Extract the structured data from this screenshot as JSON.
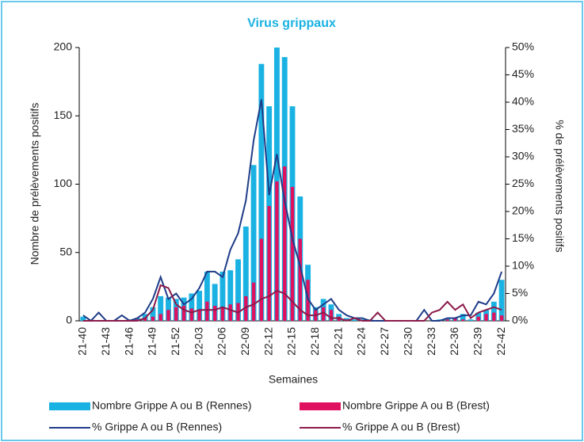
{
  "chart_data": {
    "type": "bar-line",
    "title": "Virus grippaux",
    "x_label": "Semaines",
    "y_label": "Nombre de prélèvements positifs",
    "y2_label": "% de prélèvements positifs",
    "categories": [
      "21-40",
      null,
      null,
      "21-43",
      null,
      null,
      "21-46",
      null,
      null,
      "21-49",
      null,
      null,
      "21-52",
      null,
      null,
      "22-03",
      null,
      null,
      "22-06",
      null,
      null,
      "22-09",
      null,
      null,
      "22-12",
      null,
      null,
      "22-15",
      null,
      null,
      "22-18",
      null,
      null,
      "22-21",
      null,
      null,
      "22-24",
      null,
      null,
      "22-27",
      null,
      null,
      "22-30",
      null,
      null,
      "22-33",
      null,
      null,
      "22-36",
      null,
      null,
      "22-39",
      null,
      null,
      "22-42"
    ],
    "ylim": [
      0,
      200
    ],
    "yticks": [
      0,
      50,
      100,
      150,
      200
    ],
    "y2lim": [
      0,
      50
    ],
    "y2ticks": [
      {
        "value": 0,
        "label": "0%"
      },
      {
        "value": 5,
        "label": "5%"
      },
      {
        "value": 10,
        "label": "10%"
      },
      {
        "value": 15,
        "label": "15%"
      },
      {
        "value": 20,
        "label": "20%"
      },
      {
        "value": 25,
        "label": "25%"
      },
      {
        "value": 30,
        "label": "30%"
      },
      {
        "value": 35,
        "label": "35%"
      },
      {
        "value": 40,
        "label": "40%"
      },
      {
        "value": 45,
        "label": "45%"
      },
      {
        "value": 50,
        "label": "50%"
      }
    ],
    "series": [
      {
        "name": "Nombre Grippe A ou B (Rennes)",
        "kind": "bar",
        "color": "#1ab2e3",
        "values": [
          3,
          0,
          0,
          0,
          0,
          0,
          1,
          2,
          5,
          10,
          18,
          17,
          16,
          17,
          20,
          22,
          36,
          27,
          36,
          37,
          45,
          69,
          114,
          188,
          157,
          200,
          193,
          157,
          91,
          41,
          10,
          16,
          12,
          5,
          2,
          1,
          1,
          1,
          0,
          0,
          0,
          0,
          0,
          0,
          0,
          0,
          1,
          2,
          2,
          5,
          1,
          6,
          8,
          14,
          30
        ]
      },
      {
        "name": "Nombre Grippe A ou B (Brest)",
        "kind": "bar",
        "color": "#e0125f",
        "values": [
          0,
          0,
          0,
          0,
          0,
          0,
          0,
          1,
          2,
          3,
          5,
          8,
          10,
          11,
          9,
          8,
          14,
          11,
          10,
          12,
          13,
          18,
          28,
          60,
          84,
          102,
          113,
          98,
          60,
          30,
          8,
          10,
          8,
          3,
          1,
          0,
          0,
          0,
          0,
          0,
          0,
          0,
          0,
          0,
          0,
          0,
          0,
          1,
          2,
          1,
          0,
          3,
          5,
          6,
          4
        ]
      },
      {
        "name": "% Grippe A ou B (Rennes)",
        "kind": "line",
        "axis": "y2",
        "color": "#1f3c88",
        "values": [
          1,
          0,
          1.5,
          0,
          0,
          1,
          0,
          0.5,
          1.5,
          4,
          8,
          4,
          5,
          3,
          4,
          6,
          9,
          9,
          8,
          13,
          16,
          22,
          33,
          40.5,
          23,
          30.5,
          22,
          15,
          10,
          4,
          2,
          3,
          4,
          2,
          1,
          0.5,
          0.5,
          0,
          0,
          0,
          0,
          0,
          0,
          0,
          2,
          0,
          0,
          0.5,
          0.5,
          1,
          1,
          3.5,
          3,
          5,
          9
        ]
      },
      {
        "name": "% Grippe A ou B (Brest)",
        "kind": "line",
        "axis": "y2",
        "color": "#8b1a4a",
        "values": [
          0,
          0,
          0,
          0,
          0,
          0,
          0,
          0,
          0.5,
          2,
          6.5,
          6,
          3,
          2,
          1.5,
          2,
          2,
          2,
          2.5,
          2,
          1.5,
          2.5,
          3,
          4,
          4.5,
          5.5,
          5,
          3.5,
          2,
          1,
          1,
          1.5,
          0.5,
          0.5,
          0,
          0.5,
          0,
          0,
          1.5,
          0,
          0,
          0,
          0,
          0,
          0,
          1.5,
          2,
          3.5,
          2,
          3,
          0.5,
          1.5,
          2,
          2.5,
          2
        ]
      }
    ]
  }
}
